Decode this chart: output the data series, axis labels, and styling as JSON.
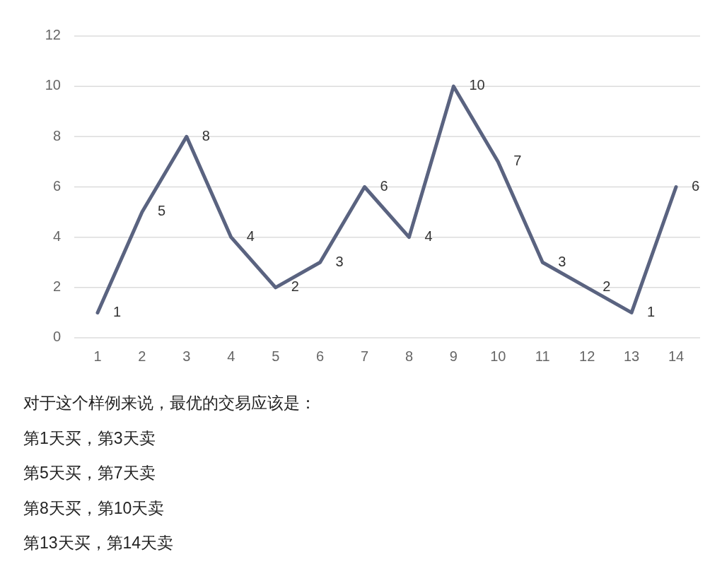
{
  "chart_data": {
    "type": "line",
    "categories": [
      "1",
      "2",
      "3",
      "4",
      "5",
      "6",
      "7",
      "8",
      "9",
      "10",
      "11",
      "12",
      "13",
      "14"
    ],
    "values": [
      1,
      5,
      8,
      4,
      2,
      3,
      6,
      4,
      10,
      7,
      3,
      2,
      1,
      6
    ],
    "color": "#5a6380",
    "ylim": [
      0,
      12
    ],
    "yticks": [
      0,
      2,
      4,
      6,
      8,
      10,
      12
    ],
    "grid": "y",
    "data_labels": true,
    "marker": "none",
    "line_style": "solid",
    "annotations": [
      "对于这个样例来说，最优的交易应该是：",
      "第1天买，第3天卖",
      "第5天买，第7天卖",
      "第8天买，第10天卖",
      "第13天买，第14天卖"
    ]
  }
}
